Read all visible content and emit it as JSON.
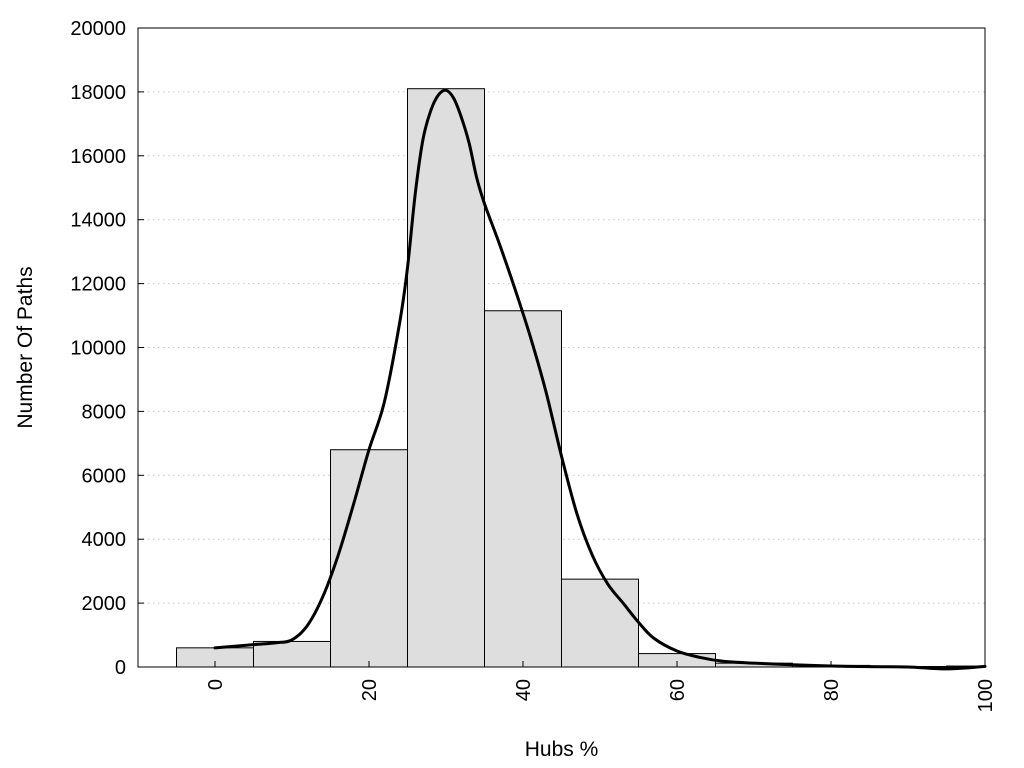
{
  "chart_data": {
    "type": "bar",
    "xlabel": "Hubs %",
    "ylabel": "Number Of Paths",
    "xlim": [
      -10,
      100
    ],
    "ylim": [
      0,
      20000
    ],
    "grid": true,
    "colors": {
      "bar_fill": "#dedede",
      "bar_stroke": "#000000",
      "curve": "#000000",
      "grid": "#c8c8c8"
    },
    "x_ticks": [
      0,
      20,
      40,
      60,
      80,
      100
    ],
    "y_ticks": [
      0,
      2000,
      4000,
      6000,
      8000,
      10000,
      12000,
      14000,
      16000,
      18000,
      20000
    ],
    "bars": [
      {
        "x0": -5,
        "x1": 5,
        "value": 600
      },
      {
        "x0": 5,
        "x1": 15,
        "value": 800
      },
      {
        "x0": 15,
        "x1": 25,
        "value": 6800
      },
      {
        "x0": 25,
        "x1": 35,
        "value": 18100
      },
      {
        "x0": 35,
        "x1": 45,
        "value": 11150
      },
      {
        "x0": 45,
        "x1": 55,
        "value": 2750
      },
      {
        "x0": 55,
        "x1": 65,
        "value": 420
      },
      {
        "x0": 65,
        "x1": 75,
        "value": 120
      },
      {
        "x0": 75,
        "x1": 85,
        "value": 50
      },
      {
        "x0": 85,
        "x1": 95,
        "value": 15
      },
      {
        "x0": 95,
        "x1": 105,
        "value": 30
      }
    ],
    "curve": {
      "x": [
        0,
        5,
        8,
        10,
        12,
        14,
        16,
        18,
        20,
        22,
        24,
        25,
        26,
        27,
        28,
        29,
        30,
        31,
        32,
        33,
        34,
        35,
        37,
        39,
        41,
        43,
        45,
        47,
        49,
        51,
        53,
        55,
        57,
        60,
        63,
        66,
        70,
        75,
        80,
        85,
        90,
        95,
        100
      ],
      "y": [
        600,
        700,
        760,
        850,
        1300,
        2200,
        3500,
        5100,
        6800,
        8300,
        10800,
        12500,
        14800,
        16500,
        17400,
        17900,
        18050,
        17800,
        17200,
        16400,
        15300,
        14500,
        13200,
        11800,
        10300,
        8600,
        6600,
        4800,
        3500,
        2600,
        2000,
        1400,
        900,
        500,
        300,
        180,
        120,
        70,
        30,
        10,
        0,
        -60,
        20
      ]
    }
  }
}
